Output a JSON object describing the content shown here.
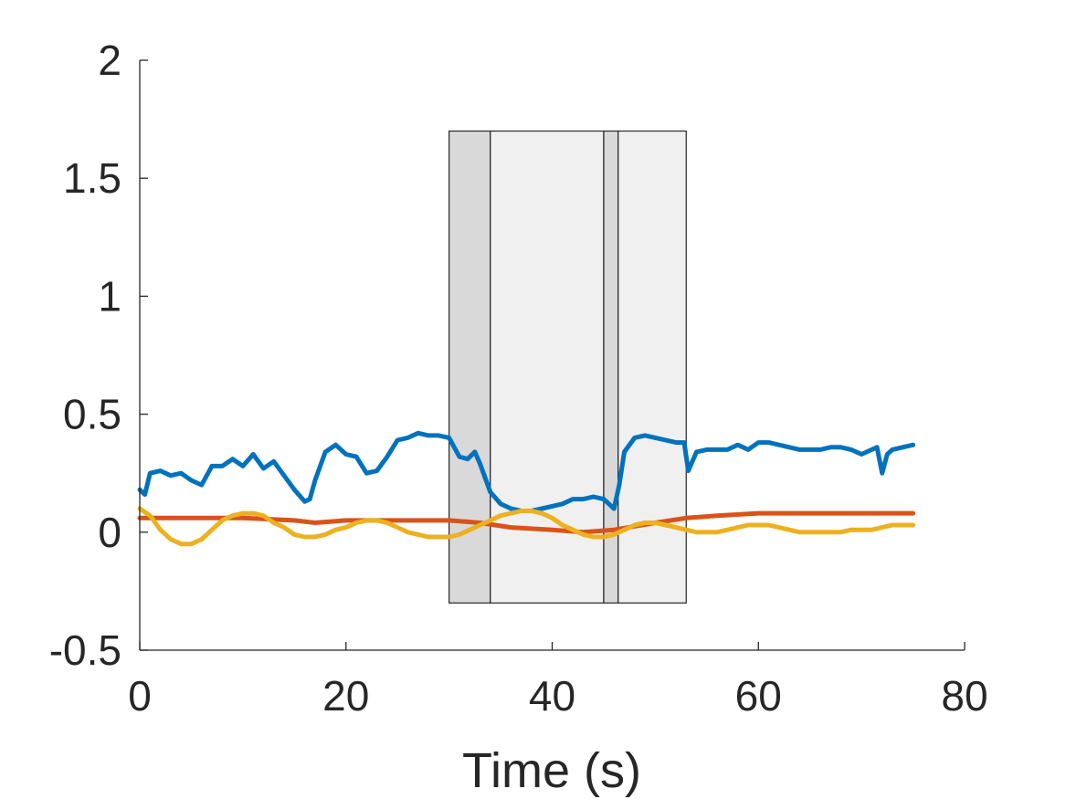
{
  "chart_data": {
    "type": "line",
    "title": "",
    "xlabel": "Time (s)",
    "ylabel": "",
    "xlim": [
      0,
      80
    ],
    "ylim": [
      -0.5,
      2
    ],
    "xticks": [
      0,
      20,
      40,
      60,
      80
    ],
    "xtick_labels": [
      "0",
      "20",
      "40",
      "60",
      "80"
    ],
    "yticks": [
      -0.5,
      0,
      0.5,
      1,
      1.5,
      2
    ],
    "ytick_labels": [
      "-0.5",
      "0",
      "0.5",
      "1",
      "1.5",
      "2"
    ],
    "grid": false,
    "legend": "none",
    "shaded_regions": [
      {
        "x0": 30,
        "x1": 34,
        "y0": -0.3,
        "y1": 1.7,
        "color": "#d9d9d9"
      },
      {
        "x0": 34,
        "x1": 45,
        "y0": -0.3,
        "y1": 1.7,
        "color": "#f0f0f0"
      },
      {
        "x0": 45,
        "x1": 46.4,
        "y0": -0.3,
        "y1": 1.7,
        "color": "#d9d9d9"
      },
      {
        "x0": 46.4,
        "x1": 53,
        "y0": -0.3,
        "y1": 1.7,
        "color": "#f0f0f0"
      }
    ],
    "series": [
      {
        "color": "#0072bd",
        "x": [
          0,
          0.5,
          1,
          2,
          3,
          4,
          5,
          6,
          7,
          8,
          9,
          10,
          11,
          12,
          13,
          14,
          15,
          16,
          16.5,
          17,
          18,
          19,
          20,
          21,
          22,
          23,
          24,
          25,
          26,
          27,
          28,
          29,
          30,
          31,
          31.8,
          32.5,
          33,
          34,
          35,
          36,
          37,
          38,
          39,
          40,
          41,
          42,
          43,
          44,
          45,
          45.5,
          46,
          46.5,
          47,
          48,
          49,
          50,
          51,
          52,
          52.8,
          53.2,
          54,
          55,
          56,
          57,
          58,
          59,
          60,
          61,
          62,
          63,
          64,
          65,
          66,
          67,
          68,
          69,
          70,
          71,
          71.5,
          72,
          72.5,
          73,
          74,
          75
        ],
        "y": [
          0.18,
          0.16,
          0.25,
          0.26,
          0.24,
          0.25,
          0.22,
          0.2,
          0.28,
          0.28,
          0.31,
          0.28,
          0.33,
          0.27,
          0.3,
          0.24,
          0.18,
          0.13,
          0.14,
          0.22,
          0.34,
          0.37,
          0.33,
          0.32,
          0.25,
          0.26,
          0.32,
          0.39,
          0.4,
          0.42,
          0.41,
          0.41,
          0.4,
          0.32,
          0.31,
          0.34,
          0.29,
          0.17,
          0.12,
          0.1,
          0.09,
          0.09,
          0.1,
          0.11,
          0.12,
          0.14,
          0.14,
          0.15,
          0.14,
          0.12,
          0.1,
          0.2,
          0.34,
          0.4,
          0.41,
          0.4,
          0.39,
          0.38,
          0.38,
          0.26,
          0.34,
          0.35,
          0.35,
          0.35,
          0.37,
          0.35,
          0.38,
          0.38,
          0.37,
          0.36,
          0.35,
          0.35,
          0.35,
          0.36,
          0.36,
          0.35,
          0.33,
          0.35,
          0.36,
          0.25,
          0.33,
          0.35,
          0.36,
          0.37
        ]
      },
      {
        "color": "#d95319",
        "x": [
          0,
          5,
          10,
          15,
          17,
          20,
          25,
          30,
          33,
          36,
          40,
          43,
          46,
          50,
          53,
          56,
          60,
          65,
          70,
          75
        ],
        "y": [
          0.06,
          0.06,
          0.06,
          0.05,
          0.04,
          0.05,
          0.05,
          0.05,
          0.04,
          0.02,
          0.01,
          0.0,
          0.01,
          0.04,
          0.06,
          0.07,
          0.08,
          0.08,
          0.08,
          0.08
        ]
      },
      {
        "color": "#edb120",
        "x": [
          0,
          1,
          2,
          3,
          4,
          5,
          6,
          7,
          8,
          9,
          10,
          11,
          12,
          13,
          14,
          15,
          16,
          17,
          18,
          19,
          20,
          21,
          22,
          23,
          24,
          25,
          26,
          27,
          28,
          29,
          30,
          31,
          32,
          33,
          34,
          35,
          36,
          37,
          38,
          39,
          40,
          41,
          42,
          43,
          44,
          45,
          46,
          47,
          48,
          49,
          50,
          51,
          52,
          53,
          54,
          55,
          56,
          57,
          58,
          59,
          60,
          61,
          62,
          63,
          64,
          65,
          66,
          67,
          68,
          69,
          70,
          71,
          72,
          73,
          74,
          75
        ],
        "y": [
          0.1,
          0.07,
          0.01,
          -0.03,
          -0.05,
          -0.05,
          -0.03,
          0.01,
          0.05,
          0.07,
          0.08,
          0.08,
          0.07,
          0.04,
          0.02,
          -0.01,
          -0.02,
          -0.02,
          -0.01,
          0.01,
          0.02,
          0.04,
          0.05,
          0.05,
          0.04,
          0.02,
          0.0,
          -0.01,
          -0.02,
          -0.02,
          -0.02,
          -0.01,
          0.01,
          0.03,
          0.05,
          0.07,
          0.08,
          0.09,
          0.09,
          0.08,
          0.06,
          0.03,
          0.01,
          -0.01,
          -0.02,
          -0.02,
          -0.01,
          0.01,
          0.03,
          0.04,
          0.04,
          0.03,
          0.02,
          0.01,
          0.0,
          0.0,
          0.0,
          0.01,
          0.02,
          0.03,
          0.03,
          0.03,
          0.02,
          0.01,
          0.0,
          0.0,
          0.0,
          0.0,
          0.0,
          0.01,
          0.01,
          0.01,
          0.02,
          0.03,
          0.03,
          0.03
        ]
      }
    ]
  }
}
